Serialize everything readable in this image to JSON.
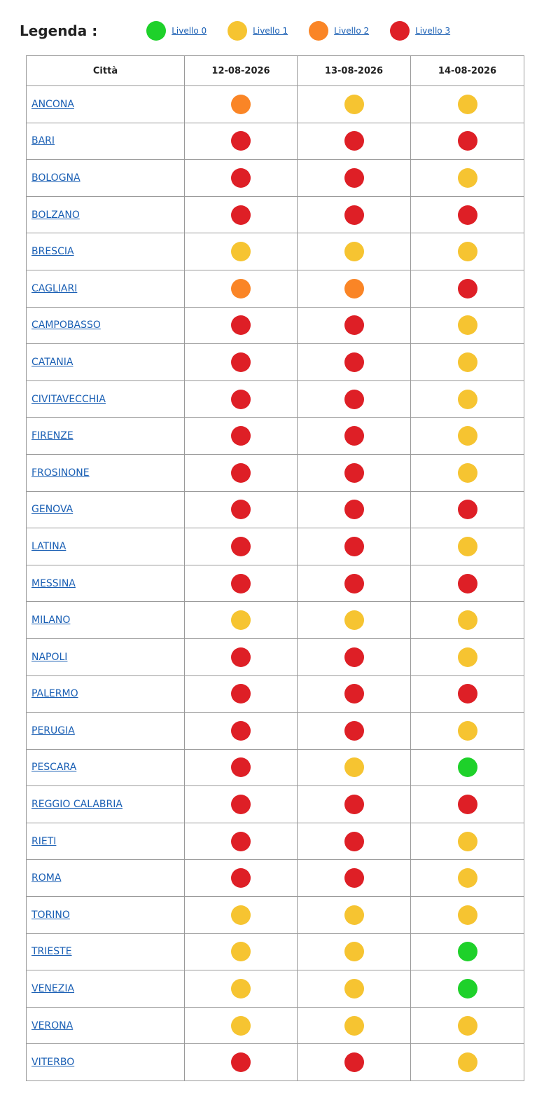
{
  "legend": {
    "title": "Legenda :",
    "levels": [
      {
        "label": "Livello 0",
        "color": "#1ed12a"
      },
      {
        "label": "Livello 1",
        "color": "#f6c431"
      },
      {
        "label": "Livello 2",
        "color": "#fa8526"
      },
      {
        "label": "Livello 3",
        "color": "#de1f26"
      }
    ]
  },
  "table": {
    "header": [
      "Città",
      "12-08-2026",
      "13-08-2026",
      "14-08-2026"
    ],
    "rows": [
      [
        "ANCONA",
        2,
        1,
        1
      ],
      [
        "BARI",
        3,
        3,
        3
      ],
      [
        "BOLOGNA",
        3,
        3,
        1
      ],
      [
        "BOLZANO",
        3,
        3,
        3
      ],
      [
        "BRESCIA",
        1,
        1,
        1
      ],
      [
        "CAGLIARI",
        2,
        2,
        3
      ],
      [
        "CAMPOBASSO",
        3,
        3,
        1
      ],
      [
        "CATANIA",
        3,
        3,
        1
      ],
      [
        "CIVITAVECCHIA",
        3,
        3,
        1
      ],
      [
        "FIRENZE",
        3,
        3,
        1
      ],
      [
        "FROSINONE",
        3,
        3,
        1
      ],
      [
        "GENOVA",
        3,
        3,
        3
      ],
      [
        "LATINA",
        3,
        3,
        1
      ],
      [
        "MESSINA",
        3,
        3,
        3
      ],
      [
        "MILANO",
        1,
        1,
        1
      ],
      [
        "NAPOLI",
        3,
        3,
        1
      ],
      [
        "PALERMO",
        3,
        3,
        3
      ],
      [
        "PERUGIA",
        3,
        3,
        1
      ],
      [
        "PESCARA",
        3,
        1,
        0
      ],
      [
        "REGGIO CALABRIA",
        3,
        3,
        3
      ],
      [
        "RIETI",
        3,
        3,
        1
      ],
      [
        "ROMA",
        3,
        3,
        1
      ],
      [
        "TORINO",
        1,
        1,
        1
      ],
      [
        "TRIESTE",
        1,
        1,
        0
      ],
      [
        "VENEZIA",
        1,
        1,
        0
      ],
      [
        "VERONA",
        1,
        1,
        1
      ],
      [
        "VITERBO",
        3,
        3,
        1
      ]
    ]
  }
}
